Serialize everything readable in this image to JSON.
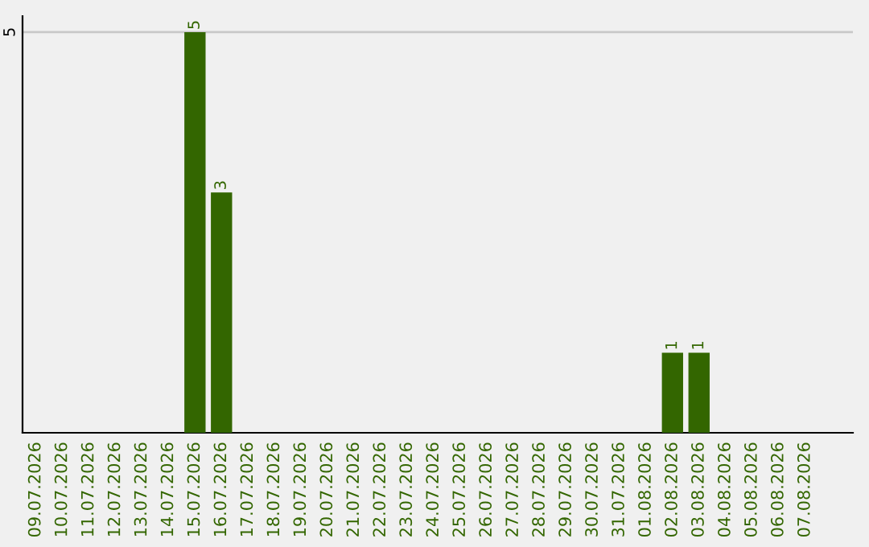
{
  "chart_data": {
    "type": "bar",
    "categories": [
      "09.07.2026",
      "10.07.2026",
      "11.07.2026",
      "12.07.2026",
      "13.07.2026",
      "14.07.2026",
      "15.07.2026",
      "16.07.2026",
      "17.07.2026",
      "18.07.2026",
      "19.07.2026",
      "20.07.2026",
      "21.07.2026",
      "22.07.2026",
      "23.07.2026",
      "24.07.2026",
      "25.07.2026",
      "26.07.2026",
      "27.07.2026",
      "28.07.2026",
      "29.07.2026",
      "30.07.2026",
      "31.07.2026",
      "01.08.2026",
      "02.08.2026",
      "03.08.2026",
      "04.08.2026",
      "05.08.2026",
      "06.08.2026",
      "07.08.2026"
    ],
    "values": [
      0,
      0,
      0,
      0,
      0,
      0,
      5,
      3,
      0,
      0,
      0,
      0,
      0,
      0,
      0,
      0,
      0,
      0,
      0,
      0,
      0,
      0,
      0,
      0,
      1,
      1,
      0,
      0,
      0,
      0
    ],
    "value_labels": [
      null,
      null,
      null,
      null,
      null,
      null,
      "5",
      "3",
      null,
      null,
      null,
      null,
      null,
      null,
      null,
      null,
      null,
      null,
      null,
      null,
      null,
      null,
      null,
      null,
      "1",
      "1",
      null,
      null,
      null,
      null
    ],
    "color": "#336600",
    "ylim": [
      0,
      5.2
    ],
    "yticks": [
      5
    ],
    "grid": "y"
  }
}
